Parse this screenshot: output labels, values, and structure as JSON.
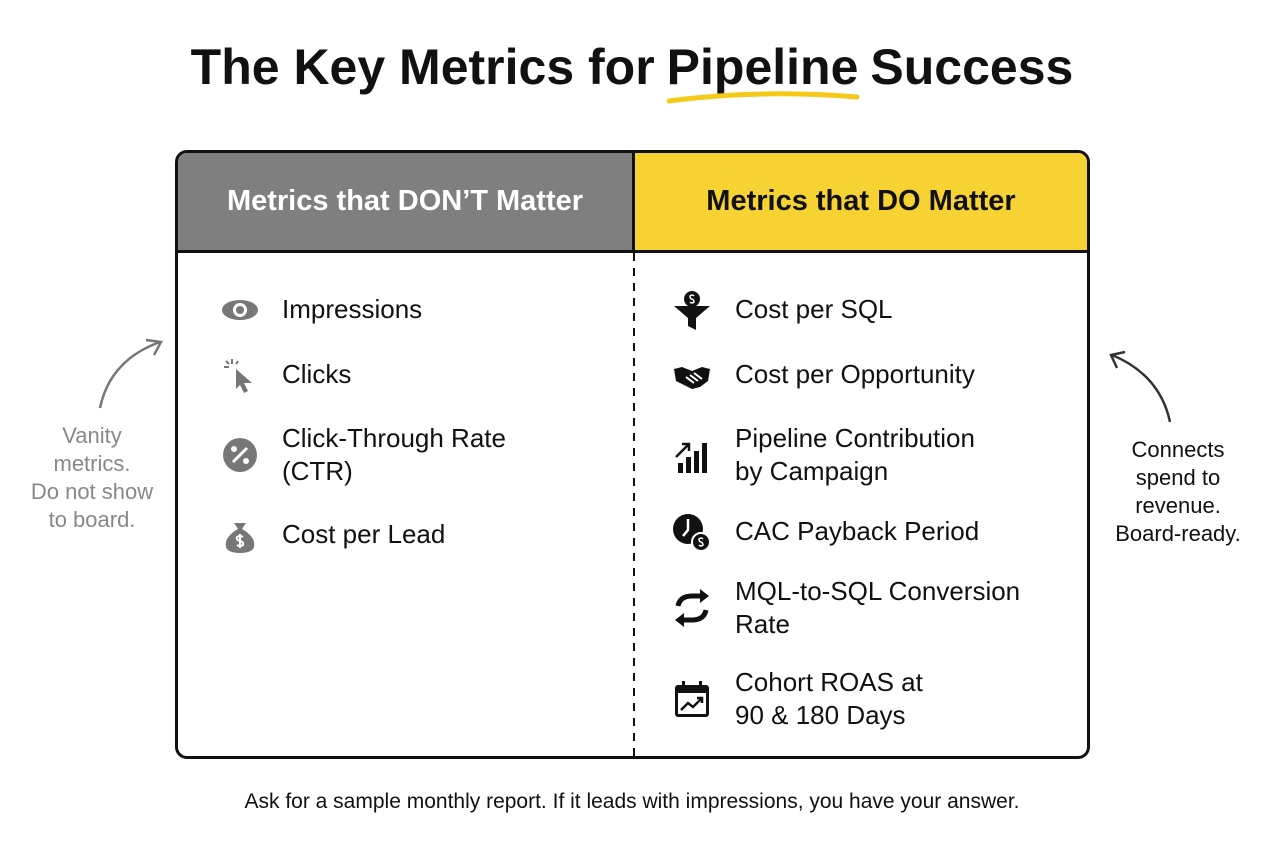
{
  "title_parts": [
    "The Key Metrics for",
    "Pipeline",
    "Success"
  ],
  "left": {
    "header": "Metrics that DON’T Matter",
    "items": [
      {
        "lines": [
          "Impressions"
        ]
      },
      {
        "lines": [
          "Clicks"
        ]
      },
      {
        "lines": [
          "Click-Through Rate",
          "(CTR)"
        ]
      },
      {
        "lines": [
          "Cost per Lead"
        ]
      }
    ]
  },
  "right": {
    "header": "Metrics that DO Matter",
    "items": [
      {
        "lines": [
          "Cost per SQL"
        ]
      },
      {
        "lines": [
          "Cost per Opportunity"
        ]
      },
      {
        "lines": [
          "Pipeline Contribution",
          "by Campaign"
        ]
      },
      {
        "lines": [
          "CAC Payback Period"
        ]
      },
      {
        "lines": [
          "MQL-to-SQL Conversion",
          "Rate"
        ]
      },
      {
        "lines": [
          "Cohort ROAS at",
          "90 & 180 Days"
        ]
      }
    ]
  },
  "left_note": [
    "Vanity",
    "metrics.",
    "Do not show",
    "to board."
  ],
  "right_note": [
    "Connects",
    "spend to",
    "revenue.",
    "Board-ready."
  ],
  "footer": "Ask for a sample monthly report. If it leads with impressions, you have your answer."
}
